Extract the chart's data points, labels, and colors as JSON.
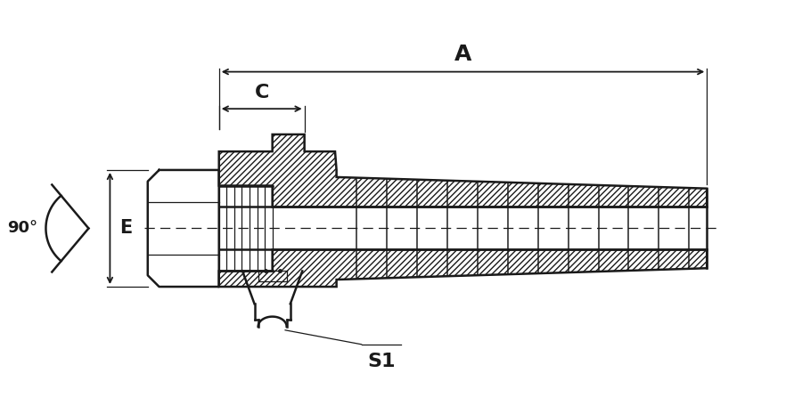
{
  "bg_color": "#ffffff",
  "line_color": "#1a1a1a",
  "lw": 1.8,
  "tlw": 0.9,
  "figsize": [
    9.0,
    4.65
  ],
  "dpi": 100,
  "label_A": "A",
  "label_C": "C",
  "label_E": "E",
  "label_S1": "S1",
  "label_90": "90°"
}
